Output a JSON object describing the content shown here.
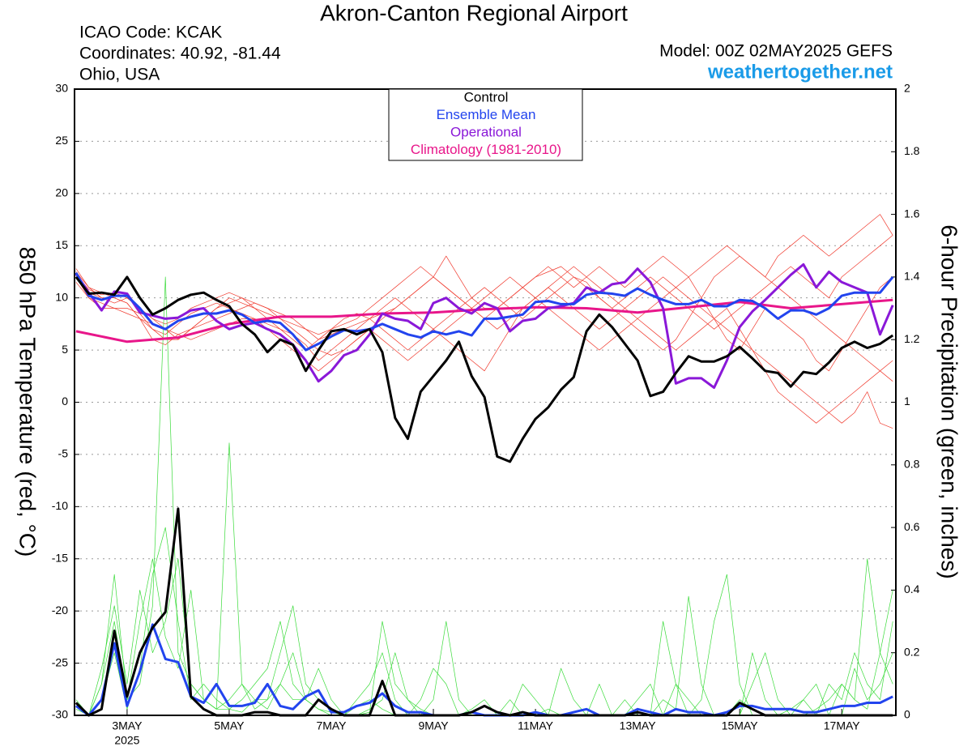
{
  "chart_data": {
    "type": "line",
    "title": "Akron-Canton Regional Airport",
    "info_lines": [
      "ICAO Code: KCAK",
      "Coordinates: 40.92, -81.44",
      "Ohio, USA"
    ],
    "model": "Model: 00Z 02MAY2025 GEFS",
    "site": "weathertogether.net",
    "ylabel": "850 hPa Temperature (red, °C)",
    "y2label": "6-hour Precipitation (green, inches)",
    "xlim": [
      1.97,
      18.06
    ],
    "xticks": [
      {
        "value": 3,
        "label": "3MAY"
      },
      {
        "value": 5,
        "label": "5MAY"
      },
      {
        "value": 7,
        "label": "7MAY"
      },
      {
        "value": 9,
        "label": "9MAY"
      },
      {
        "value": 11,
        "label": "11MAY"
      },
      {
        "value": 13,
        "label": "13MAY"
      },
      {
        "value": 15,
        "label": "15MAY"
      },
      {
        "value": 17,
        "label": "17MAY"
      }
    ],
    "xtick_sublabel": "2025",
    "ylim": [
      -30,
      30
    ],
    "yticks": [
      -30,
      -25,
      -20,
      -15,
      -10,
      -5,
      0,
      5,
      10,
      15,
      20,
      25,
      30
    ],
    "y2lim": [
      0,
      2
    ],
    "y2ticks": [
      0,
      0.2,
      0.4,
      0.6,
      0.8,
      1,
      1.2,
      1.4,
      1.6,
      1.8,
      2
    ],
    "grid": true,
    "legend": "top-center",
    "x": [
      2,
      2.25,
      2.5,
      2.75,
      3,
      3.25,
      3.5,
      3.75,
      4,
      4.25,
      4.5,
      4.75,
      5,
      5.25,
      5.5,
      5.75,
      6,
      6.25,
      6.5,
      6.75,
      7,
      7.25,
      7.5,
      7.75,
      8,
      8.25,
      8.5,
      8.75,
      9,
      9.25,
      9.5,
      9.75,
      10,
      10.25,
      10.5,
      10.75,
      11,
      11.25,
      11.5,
      11.75,
      12,
      12.25,
      12.5,
      12.75,
      13,
      13.25,
      13.5,
      13.75,
      14,
      14.25,
      14.5,
      14.75,
      15,
      15.25,
      15.5,
      15.75,
      16,
      16.25,
      16.5,
      16.75,
      17,
      17.25,
      17.5,
      17.75,
      18
    ],
    "series": [
      {
        "color": "#f03a2e",
        "values": [
          12.5,
          11,
          10,
          10,
          9.5,
          8,
          7,
          6.5,
          7.5,
          8.5,
          9,
          9.5,
          9,
          8.5,
          8,
          7.5,
          7,
          6,
          5,
          6,
          7,
          8,
          8.5,
          8,
          7,
          6,
          5,
          6,
          7,
          8,
          9,
          10,
          11,
          10,
          9,
          8,
          9,
          10,
          11,
          12,
          11.5,
          10,
          9,
          10,
          11,
          12,
          11,
          10,
          9,
          8,
          7,
          8,
          9,
          10,
          11,
          12,
          13,
          12,
          11,
          10,
          12,
          13,
          14,
          15,
          16
        ]
      },
      {
        "color": "#f03a2e",
        "values": [
          12,
          10.5,
          10,
          9.5,
          10,
          9,
          8,
          7,
          6,
          7,
          8,
          9,
          10,
          9.5,
          9,
          8,
          7,
          6.5,
          5.5,
          4,
          5,
          6,
          7,
          8,
          9,
          10,
          9,
          8,
          7,
          6,
          5,
          4,
          3,
          5,
          7,
          9,
          10,
          11,
          12,
          13,
          12,
          11,
          10,
          9,
          8,
          7,
          6,
          5,
          6,
          7,
          8,
          9,
          7,
          5,
          3,
          1,
          0,
          -1,
          -2,
          -1,
          0,
          1,
          2,
          3,
          4
        ]
      },
      {
        "color": "#f03a2e",
        "values": [
          11.5,
          10,
          9,
          9,
          9,
          8.5,
          7,
          6,
          6,
          7,
          7.5,
          8,
          8.5,
          9,
          9.5,
          9,
          8,
          7,
          6,
          5,
          4.5,
          5,
          6,
          7,
          8,
          9,
          10,
          11,
          12,
          11,
          10,
          9,
          8,
          9,
          10,
          11,
          12,
          12.5,
          13,
          12,
          11,
          10,
          9,
          8,
          7,
          6,
          5,
          6,
          8,
          10,
          12,
          13,
          14,
          13,
          12,
          11,
          10,
          9,
          8,
          7,
          6,
          5,
          4,
          3,
          2
        ]
      },
      {
        "color": "#f03a2e",
        "values": [
          12.8,
          11,
          10.5,
          10,
          9.5,
          8,
          6,
          5.5,
          6.5,
          7,
          8,
          9,
          9.5,
          10,
          9,
          8.5,
          8,
          7.5,
          7,
          6.5,
          7,
          7.5,
          8,
          9,
          10,
          11,
          12,
          13,
          12,
          11,
          10,
          9,
          10,
          11,
          12,
          11,
          10,
          9,
          8,
          7,
          6,
          5,
          6,
          7,
          8,
          9,
          10,
          11,
          12,
          13,
          14,
          15,
          14,
          13,
          12,
          14,
          15,
          16,
          15,
          14,
          15,
          16,
          17,
          18,
          16
        ]
      },
      {
        "color": "#f03a2e",
        "values": [
          12,
          10,
          9.5,
          9,
          8.5,
          8,
          7.5,
          7,
          6.5,
          6,
          6.5,
          7,
          7.5,
          8,
          8,
          7,
          6,
          5,
          4,
          3,
          4,
          5,
          6,
          7,
          6,
          5,
          4,
          5,
          6,
          7,
          8,
          9,
          8,
          7,
          8,
          9,
          10,
          11,
          10,
          9,
          8,
          7,
          8,
          9,
          10,
          11,
          12,
          11,
          10,
          9,
          8,
          7,
          6,
          5,
          4,
          3,
          2,
          1,
          0,
          -1,
          -2,
          -1,
          1,
          -2,
          -2.5
        ]
      },
      {
        "color": "#f03a2e",
        "values": [
          12.2,
          10.8,
          10.3,
          10.5,
          10,
          9,
          8,
          7.5,
          8,
          9,
          9.5,
          10,
          10.5,
          10,
          9.5,
          9,
          8.5,
          8,
          7,
          6,
          6.5,
          7,
          7.5,
          8,
          8.5,
          9,
          10,
          11,
          12,
          14,
          12,
          10,
          9,
          9,
          10,
          11,
          12,
          13,
          12,
          11,
          12,
          13,
          12,
          11,
          12,
          13,
          14,
          13,
          12,
          10,
          8,
          6,
          5,
          7,
          9,
          8,
          7,
          6,
          4,
          3,
          5,
          7,
          9,
          11,
          12
        ]
      },
      {
        "color": "#3adb3a",
        "axis": "y2",
        "values": [
          0.03,
          0,
          0.1,
          0.3,
          0.05,
          0.1,
          0.35,
          1.4,
          0.2,
          0.1,
          0.05,
          0.02,
          0.87,
          0.1,
          0.05,
          0.02,
          0.1,
          0.2,
          0.05,
          0.02,
          0.01,
          0,
          0.05,
          0.1,
          0.2,
          0.05,
          0,
          0,
          0,
          0,
          0,
          0.02,
          0.05,
          0,
          0,
          0,
          0,
          0,
          0,
          0,
          0,
          0,
          0,
          0,
          0,
          0,
          0.3,
          0.1,
          0,
          0,
          0,
          0,
          0.05,
          0.02,
          0,
          0,
          0,
          0,
          0,
          0,
          0.1,
          0.05,
          0.02,
          0.2,
          0.4
        ]
      },
      {
        "color": "#3adb3a",
        "axis": "y2",
        "values": [
          0.05,
          0,
          0.15,
          0.35,
          0.1,
          0.4,
          0.2,
          0.3,
          0.5,
          0.1,
          0.05,
          0.02,
          0.02,
          0.05,
          0.1,
          0.15,
          0.3,
          0.1,
          0.05,
          0.02,
          0,
          0,
          0.03,
          0.05,
          0.02,
          0,
          0,
          0.05,
          0.15,
          0.1,
          0,
          0,
          0,
          0,
          0,
          0.1,
          0.05,
          0,
          0,
          0,
          0,
          0,
          0,
          0,
          0,
          0,
          0.05,
          0.02,
          0.38,
          0.1,
          0,
          0,
          0,
          0.1,
          0.2,
          0.05,
          0,
          0,
          0.02,
          0.05,
          0.1,
          0.05,
          0.5,
          0.2,
          0.1
        ]
      },
      {
        "color": "#3adb3a",
        "axis": "y2",
        "values": [
          0.02,
          0,
          0.05,
          0.2,
          0.02,
          0.15,
          0.45,
          0.6,
          0.3,
          0.05,
          0.1,
          0.05,
          0.02,
          0.01,
          0.05,
          0.05,
          0.2,
          0.35,
          0.1,
          0.05,
          0.02,
          0,
          0,
          0.01,
          0.3,
          0.1,
          0.05,
          0.02,
          0,
          0,
          0,
          0.01,
          0,
          0,
          0.05,
          0,
          0,
          0.02,
          0,
          0,
          0,
          0.1,
          0,
          0,
          0.05,
          0.1,
          0,
          0,
          0,
          0.05,
          0.3,
          0.45,
          0.1,
          0,
          0,
          0,
          0.02,
          0.05,
          0,
          0.1,
          0.05,
          0.2,
          0.1,
          0.05,
          0.3
        ]
      },
      {
        "color": "#3adb3a",
        "axis": "y2",
        "values": [
          0.04,
          0,
          0.1,
          0.45,
          0.05,
          0.3,
          0.5,
          0.25,
          0.15,
          0.4,
          0.05,
          0.02,
          0.05,
          0.1,
          0.02,
          0.05,
          0.1,
          0.05,
          0.05,
          0.15,
          0.05,
          0,
          0,
          0.02,
          0.05,
          0.2,
          0.05,
          0,
          0.05,
          0.3,
          0.05,
          0,
          0,
          0,
          0,
          0,
          0,
          0,
          0.15,
          0.05,
          0,
          0,
          0,
          0.05,
          0,
          0,
          0,
          0.1,
          0.05,
          0,
          0,
          0,
          0,
          0.2,
          0.05,
          0,
          0,
          0.05,
          0.1,
          0,
          0,
          0.15,
          0.05,
          0.1,
          0.2
        ]
      },
      {
        "name": "Climatology (1981-2010)",
        "color": "#e8168a",
        "x": [
          2,
          3,
          4,
          5,
          6,
          7,
          8,
          9,
          10,
          11,
          12,
          13,
          14,
          15,
          16,
          17,
          18
        ],
        "values": [
          6.8,
          5.8,
          6.2,
          7.5,
          8.2,
          8.2,
          8.5,
          8.6,
          8.9,
          9.1,
          9,
          8.6,
          9.1,
          9.6,
          9,
          9.4,
          9.8
        ]
      },
      {
        "color": "#2244ee",
        "axis": "y2",
        "values": [
          0.03,
          0,
          0.05,
          0.23,
          0.03,
          0.14,
          0.29,
          0.18,
          0.17,
          0.06,
          0.04,
          0.1,
          0.03,
          0.03,
          0.04,
          0.1,
          0.03,
          0.02,
          0.06,
          0.08,
          0.01,
          0.01,
          0.03,
          0.04,
          0.07,
          0.03,
          0.01,
          0.01,
          0,
          0,
          0,
          0.01,
          0,
          0,
          0,
          0,
          0.01,
          0,
          0,
          0.01,
          0.02,
          0,
          0,
          0,
          0.02,
          0.01,
          0,
          0.02,
          0.01,
          0.01,
          0,
          0.01,
          0.03,
          0.03,
          0.02,
          0.02,
          0.02,
          0.01,
          0.01,
          0.02,
          0.03,
          0.03,
          0.04,
          0.04,
          0.06
        ]
      },
      {
        "color": "#000000",
        "axis": "y2",
        "values": [
          0.04,
          0,
          0.02,
          0.27,
          0.06,
          0.2,
          0.28,
          0.33,
          0.66,
          0.06,
          0.02,
          0,
          0,
          0,
          0.01,
          0.01,
          0,
          0,
          0,
          0.05,
          0.02,
          0,
          0,
          0,
          0.11,
          0,
          0,
          0,
          0,
          0,
          0,
          0.01,
          0.03,
          0.01,
          0,
          0.01,
          0,
          0,
          0,
          0,
          0,
          0,
          0,
          0,
          0.01,
          0,
          0,
          0,
          0,
          0,
          0,
          0,
          0.04,
          0.02,
          0,
          0,
          0,
          0,
          0,
          0,
          0,
          0,
          0,
          0,
          0
        ]
      },
      {
        "name": "Operational",
        "color": "#8a18d8",
        "values": [
          12.3,
          10.5,
          8.8,
          10.6,
          10.4,
          8.6,
          8.3,
          8,
          8.1,
          8.8,
          9,
          7.8,
          7,
          7.4,
          7.6,
          7,
          6.5,
          5.5,
          4,
          2,
          3,
          4.5,
          5,
          6.5,
          8.5,
          8,
          7.8,
          7,
          9.5,
          10,
          9,
          8.5,
          9.5,
          9,
          6.8,
          7.8,
          8,
          9,
          9.2,
          9.5,
          11,
          10.5,
          11.3,
          11.5,
          12.8,
          11.5,
          9,
          1.8,
          2.3,
          2.3,
          1.4,
          4,
          7.2,
          8.7,
          9.8,
          11,
          12.2,
          13.2,
          11,
          12.5,
          11.5,
          11,
          10.5,
          6.5,
          9.3
        ]
      },
      {
        "name": "Ensemble Mean",
        "color": "#2244ee",
        "values": [
          12.4,
          10.2,
          9.8,
          10.2,
          10.2,
          9,
          7.5,
          7,
          7.8,
          8.2,
          8.5,
          8.5,
          8.8,
          8.4,
          7.6,
          7.8,
          7.6,
          6.5,
          5,
          5.6,
          6.3,
          6.9,
          6.8,
          7,
          7.5,
          7,
          6.5,
          6.2,
          6.8,
          6.5,
          6.8,
          6.4,
          8,
          8,
          8.2,
          8.4,
          9.6,
          9.7,
          9.4,
          9.4,
          10.3,
          10.5,
          10.4,
          10.2,
          10.9,
          10.3,
          9.8,
          9.4,
          9.4,
          9.8,
          9.2,
          9.2,
          9.8,
          9.7,
          9,
          8,
          8.8,
          8.8,
          8.4,
          9,
          10.2,
          10.5,
          10.5,
          10.5,
          12
        ]
      },
      {
        "name": "Control",
        "color": "#000000",
        "values": [
          12,
          10.4,
          10.5,
          10.3,
          12,
          10,
          8.4,
          9,
          9.8,
          10.3,
          10.5,
          9.8,
          9.2,
          7.5,
          6.5,
          4.8,
          6,
          5.5,
          3,
          5,
          6.8,
          7,
          6.5,
          7,
          4.8,
          -1.5,
          -3.5,
          1,
          2.5,
          4,
          5.8,
          2.5,
          0.5,
          -5.2,
          -5.7,
          -3.5,
          -1.6,
          -0.5,
          1.2,
          2.4,
          6.8,
          8.4,
          7.2,
          5.6,
          4,
          0.6,
          1,
          2.8,
          4.4,
          3.9,
          3.9,
          4.4,
          5.3,
          4.2,
          3,
          2.8,
          1.5,
          2.9,
          2.7,
          3.8,
          5.2,
          5.8,
          5.2,
          5.6,
          6.4
        ]
      }
    ]
  }
}
